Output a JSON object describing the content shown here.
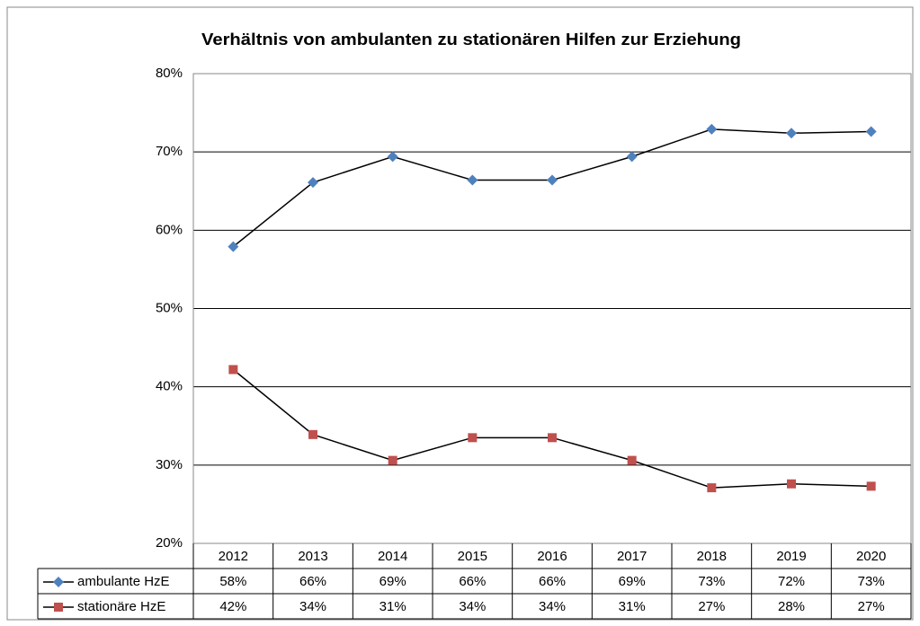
{
  "chart_data": {
    "type": "line",
    "title": "Verhältnis von ambulanten zu stationären Hilfen zur Erziehung",
    "categories": [
      "2012",
      "2013",
      "2014",
      "2015",
      "2016",
      "2017",
      "2018",
      "2019",
      "2020"
    ],
    "series": [
      {
        "name": "ambulante HzE",
        "color": "#4f81bd",
        "marker": "diamond",
        "values": [
          57.9,
          66.1,
          69.4,
          66.4,
          66.4,
          69.4,
          72.9,
          72.4,
          72.6
        ],
        "value_labels": [
          "58%",
          "66%",
          "69%",
          "66%",
          "66%",
          "69%",
          "73%",
          "72%",
          "73%"
        ]
      },
      {
        "name": "stationäre HzE",
        "color": "#c0504d",
        "marker": "square",
        "values": [
          42.2,
          33.9,
          30.6,
          33.5,
          33.5,
          30.6,
          27.1,
          27.6,
          27.3
        ],
        "value_labels": [
          "42%",
          "34%",
          "31%",
          "34%",
          "34%",
          "31%",
          "27%",
          "28%",
          "27%"
        ]
      }
    ],
    "ylim": [
      20,
      80
    ],
    "yticks": [
      {
        "value": 20,
        "label": "20%"
      },
      {
        "value": 30,
        "label": "30%"
      },
      {
        "value": 40,
        "label": "40%"
      },
      {
        "value": 50,
        "label": "50%"
      },
      {
        "value": 60,
        "label": "60%"
      },
      {
        "value": 70,
        "label": "70%"
      },
      {
        "value": 80,
        "label": "80%"
      }
    ],
    "grid": true,
    "data_table": true
  }
}
